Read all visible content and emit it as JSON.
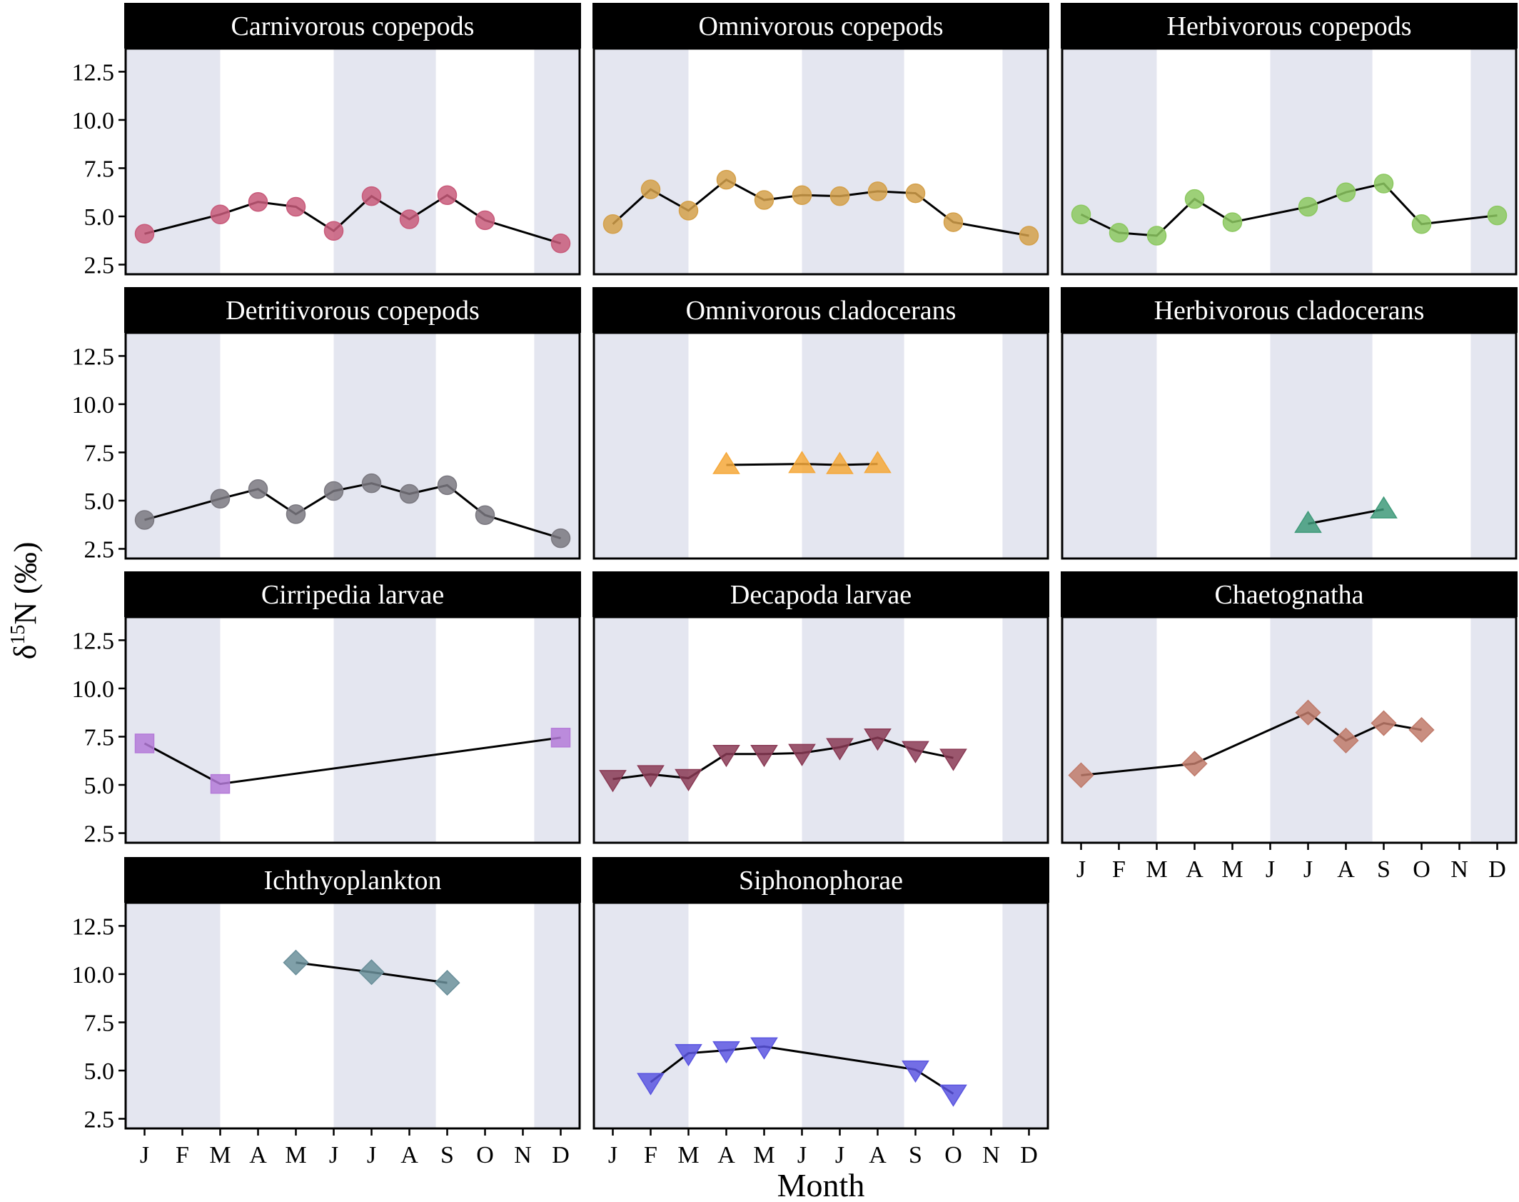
{
  "figure": {
    "ylabel_prefix": "δ",
    "ylabel_sup": "15",
    "ylabel_suffix": "N (‰)",
    "xlabel": "Month",
    "months": [
      "J",
      "F",
      "M",
      "A",
      "M",
      "J",
      "J",
      "A",
      "S",
      "O",
      "N",
      "D"
    ],
    "yticks": [
      "2.5",
      "5.0",
      "7.5",
      "10.0",
      "12.5"
    ],
    "season_bands": [
      [
        0.5,
        3.0
      ],
      [
        6.0,
        8.7
      ],
      [
        11.3,
        12.5
      ]
    ],
    "band_color": "#e4e6f0",
    "line_color": "#000000"
  },
  "chart_data": [
    {
      "type": "line",
      "title": "Carnivorous copepods",
      "marker": "circle",
      "color": "#c85a7a",
      "x": [
        1,
        3,
        4,
        5,
        6,
        7,
        8,
        9,
        10,
        12
      ],
      "y": [
        4.1,
        5.1,
        5.75,
        5.5,
        4.25,
        6.05,
        4.85,
        6.1,
        4.8,
        3.6
      ],
      "xlim": [
        0.5,
        12.5
      ],
      "ylim": [
        2.0,
        13.7
      ]
    },
    {
      "type": "line",
      "title": "Omnivorous copepods",
      "marker": "circle",
      "color": "#d4a04a",
      "x": [
        1,
        2,
        3,
        4,
        5,
        6,
        7,
        8,
        9,
        10,
        12
      ],
      "y": [
        4.6,
        6.4,
        5.3,
        6.9,
        5.85,
        6.1,
        6.05,
        6.3,
        6.2,
        4.7,
        4.0
      ],
      "xlim": [
        0.5,
        12.5
      ],
      "ylim": [
        2.0,
        13.7
      ]
    },
    {
      "type": "line",
      "title": "Herbivorous copepods",
      "marker": "circle",
      "color": "#8cc860",
      "x": [
        1,
        2,
        3,
        4,
        5,
        7,
        8,
        9,
        10,
        12
      ],
      "y": [
        5.1,
        4.15,
        4.0,
        5.9,
        4.7,
        5.5,
        6.25,
        6.7,
        4.6,
        5.05
      ],
      "xlim": [
        0.5,
        12.5
      ],
      "ylim": [
        2.0,
        13.7
      ]
    },
    {
      "type": "line",
      "title": "Detritivorous copepods",
      "marker": "circle",
      "color": "#7a7880",
      "x": [
        1,
        3,
        4,
        5,
        6,
        7,
        8,
        9,
        10,
        12
      ],
      "y": [
        4.0,
        5.1,
        5.6,
        4.3,
        5.5,
        5.9,
        5.35,
        5.8,
        4.25,
        3.05
      ],
      "xlim": [
        0.5,
        12.5
      ],
      "ylim": [
        2.0,
        13.7
      ]
    },
    {
      "type": "line",
      "title": "Omnivorous cladocerans",
      "marker": "triangle-up",
      "color": "#f5a83a",
      "x": [
        4,
        6,
        7,
        8
      ],
      "y": [
        6.85,
        6.9,
        6.85,
        6.9
      ],
      "xlim": [
        0.5,
        12.5
      ],
      "ylim": [
        2.0,
        13.7
      ]
    },
    {
      "type": "line",
      "title": "Herbivorous cladocerans",
      "marker": "triangle-up",
      "color": "#3f9a7a",
      "x": [
        7,
        9
      ],
      "y": [
        3.8,
        4.55
      ],
      "xlim": [
        0.5,
        12.5
      ],
      "ylim": [
        2.0,
        13.7
      ]
    },
    {
      "type": "line",
      "title": "Cirripedia larvae",
      "marker": "square",
      "color": "#b47ad8",
      "x": [
        1,
        3,
        12
      ],
      "y": [
        7.15,
        5.05,
        7.45
      ],
      "xlim": [
        0.5,
        12.5
      ],
      "ylim": [
        2.0,
        13.7
      ]
    },
    {
      "type": "line",
      "title": "Decapoda larvae",
      "marker": "triangle-down",
      "color": "#8a3a55",
      "x": [
        1,
        2,
        3,
        4,
        5,
        6,
        7,
        8,
        9,
        10
      ],
      "y": [
        5.3,
        5.55,
        5.35,
        6.6,
        6.6,
        6.65,
        6.95,
        7.45,
        6.8,
        6.4
      ],
      "xlim": [
        0.5,
        12.5
      ],
      "ylim": [
        2.0,
        13.7
      ]
    },
    {
      "type": "line",
      "title": "Chaetognatha",
      "marker": "diamond",
      "color": "#c07a6a",
      "x": [
        1,
        4,
        7,
        8,
        9,
        10
      ],
      "y": [
        5.5,
        6.1,
        8.75,
        7.3,
        8.2,
        7.85
      ],
      "xlim": [
        0.5,
        12.5
      ],
      "ylim": [
        2.0,
        13.7
      ]
    },
    {
      "type": "line",
      "title": "Ichthyoplankton",
      "marker": "diamond",
      "color": "#6a8f9a",
      "x": [
        5,
        7,
        9
      ],
      "y": [
        10.6,
        10.1,
        9.55
      ],
      "xlim": [
        0.5,
        12.5
      ],
      "ylim": [
        2.0,
        13.7
      ]
    },
    {
      "type": "line",
      "title": "Siphonophorae",
      "marker": "triangle-down",
      "color": "#5a55e0",
      "x": [
        2,
        3,
        4,
        5,
        9,
        10
      ],
      "y": [
        4.4,
        5.9,
        6.05,
        6.25,
        5.05,
        3.8
      ],
      "xlim": [
        0.5,
        12.5
      ],
      "ylim": [
        2.0,
        13.7
      ]
    }
  ]
}
